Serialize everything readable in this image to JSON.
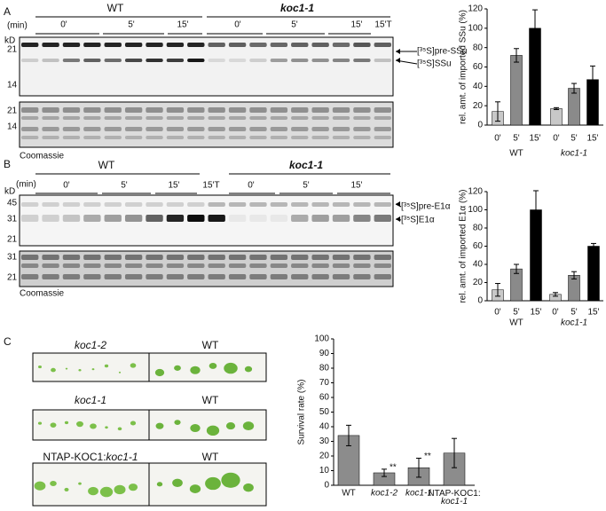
{
  "panels": {
    "A": {
      "letter": "A",
      "groups": [
        "WT",
        "koc1-1"
      ],
      "min_label": "(min)",
      "times": [
        "0'",
        "5'",
        "15'",
        "0'",
        "5'",
        "15'",
        "15'T"
      ],
      "kd": "kD",
      "markers": [
        "21",
        "14"
      ],
      "bands": [
        "[³⁵S]pre-SSu",
        "[³⁵S]SSu"
      ],
      "stain_markers": [
        "21",
        "14"
      ],
      "stain": "Coomassie"
    },
    "B": {
      "letter": "B",
      "groups": [
        "WT",
        "koc1-1"
      ],
      "min_label": "(min)",
      "times": [
        "0'",
        "5'",
        "15'",
        "15'T",
        "0'",
        "5'",
        "15'"
      ],
      "kd": "kD",
      "markers": [
        "45",
        "31",
        "21"
      ],
      "bands": [
        "[³⁵S]pre-E1α",
        "[³⁵S]E1α"
      ],
      "stain_markers": [
        "31",
        "21"
      ],
      "stain": "Coomassie"
    },
    "C": {
      "letter": "C",
      "rows": [
        {
          "mutant": "koc1-2",
          "wt": "WT"
        },
        {
          "mutant": "koc1-1",
          "wt": "WT"
        },
        {
          "mutant_prefix": "NTAP-KOC1:",
          "mutant": "koc1-1",
          "wt": "WT"
        }
      ]
    }
  },
  "chart_data": [
    {
      "type": "bar",
      "y_label": "rel. amt. of imported SSu (%)",
      "categories": [
        "0'",
        "5'",
        "15'",
        "0'",
        "5'",
        "15'"
      ],
      "groups": [
        "WT",
        "koc1-1"
      ],
      "values": [
        14,
        72,
        100,
        17,
        38,
        47
      ],
      "errors": [
        10,
        7,
        19,
        1,
        5,
        14
      ],
      "colors": [
        "#c8c8c8",
        "#8a8a8a",
        "#000000",
        "#c8c8c8",
        "#8a8a8a",
        "#000000"
      ],
      "ylim": [
        0,
        120
      ],
      "yticks": [
        0,
        20,
        40,
        60,
        80,
        100,
        120
      ]
    },
    {
      "type": "bar",
      "y_label": "rel. amt. of imported E1α (%)",
      "categories": [
        "0'",
        "5'",
        "15'",
        "0'",
        "5'",
        "15'"
      ],
      "groups": [
        "WT",
        "koc1-1"
      ],
      "values": [
        12,
        35,
        100,
        7,
        28,
        60
      ],
      "errors": [
        7,
        5,
        21,
        2,
        4,
        3
      ],
      "colors": [
        "#c8c8c8",
        "#8a8a8a",
        "#000000",
        "#c8c8c8",
        "#8a8a8a",
        "#000000"
      ],
      "ylim": [
        0,
        120
      ],
      "yticks": [
        0,
        20,
        40,
        60,
        80,
        100,
        120
      ]
    },
    {
      "type": "bar",
      "y_label": "Survival rate (%)",
      "categories": [
        "WT",
        "koc1-2",
        "koc1-1",
        "NTAP-KOC1: koc1-1"
      ],
      "values": [
        34,
        8.5,
        12,
        22
      ],
      "errors": [
        7,
        2.5,
        6.5,
        10
      ],
      "annotations": [
        null,
        "**",
        "**",
        null
      ],
      "colors": [
        "#8c8c8c",
        "#8c8c8c",
        "#8c8c8c",
        "#8c8c8c"
      ],
      "ylim": [
        0,
        100
      ],
      "yticks": [
        0,
        10,
        20,
        30,
        40,
        50,
        60,
        70,
        80,
        90,
        100
      ]
    }
  ]
}
